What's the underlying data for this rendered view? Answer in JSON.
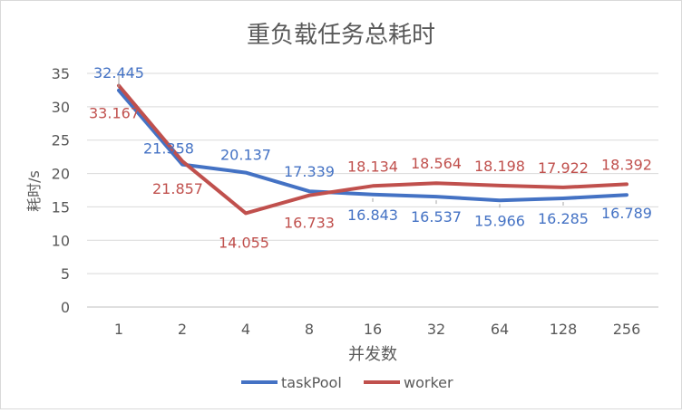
{
  "chart_data": {
    "type": "line",
    "title": "重负载任务总耗时",
    "xlabel": "并发数",
    "ylabel": "耗时/s",
    "categories": [
      "1",
      "2",
      "4",
      "8",
      "16",
      "32",
      "64",
      "128",
      "256"
    ],
    "ylim": [
      0,
      35
    ],
    "yticks": [
      0,
      5,
      10,
      15,
      20,
      25,
      30,
      35
    ],
    "grid": true,
    "legend_position": "bottom",
    "series": [
      {
        "name": "taskPool",
        "color": "#4472c4",
        "label_color": "#4472c4",
        "values": [
          32.445,
          21.358,
          20.137,
          17.339,
          16.843,
          16.537,
          15.966,
          16.285,
          16.789
        ],
        "labels": [
          "32.445",
          "21.358",
          "20.137",
          "17.339",
          "16.843",
          "16.537",
          "15.966",
          "16.285",
          "16.789"
        ]
      },
      {
        "name": "worker",
        "color": "#c0504d",
        "label_color": "#c0504d",
        "values": [
          33.167,
          21.857,
          14.055,
          16.733,
          18.134,
          18.564,
          18.198,
          17.922,
          18.392
        ],
        "labels": [
          "33.167",
          "21.857",
          "14.055",
          "16.733",
          "18.134",
          "18.564",
          "18.198",
          "17.922",
          "18.392"
        ]
      }
    ]
  }
}
